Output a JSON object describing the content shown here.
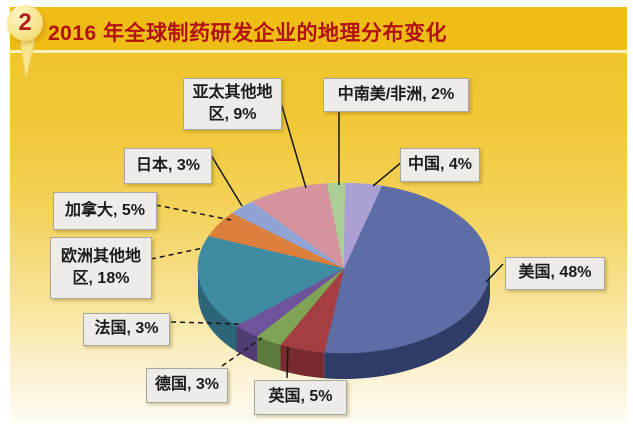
{
  "badge": {
    "number": "2"
  },
  "header": {
    "title": "2016 年全球制药研发企业的地理分布变化"
  },
  "chart_data": {
    "type": "pie",
    "style": "3d",
    "title": "2016 年全球制药研发企业的地理分布变化",
    "unit": "percent",
    "total": 100,
    "direction": "clockwise",
    "start_angle_deg": 15,
    "legend_position": "callout-labels",
    "slices": [
      {
        "id": "usa",
        "label": "美国",
        "value": 48,
        "color": "#5d6da6",
        "side_color": "#303c68"
      },
      {
        "id": "uk",
        "label": "英国",
        "value": 5,
        "color": "#a43e40",
        "side_color": "#772b2f"
      },
      {
        "id": "germany",
        "label": "德国",
        "value": 3,
        "color": "#80a455",
        "side_color": "#5c7b3c"
      },
      {
        "id": "france",
        "label": "法国",
        "value": 3,
        "color": "#6f549b",
        "side_color": "#4f3c73"
      },
      {
        "id": "europe-other",
        "label": "欧洲其他地区",
        "value": 18,
        "color": "#3f8ca2",
        "side_color": "#2c6478"
      },
      {
        "id": "canada",
        "label": "加拿大",
        "value": 5,
        "color": "#dc7e3c",
        "side_color": "#a65a24"
      },
      {
        "id": "japan",
        "label": "日本",
        "value": 3,
        "color": "#90a3d5",
        "side_color": "#67799f"
      },
      {
        "id": "apac-other",
        "label": "亚太其他地区",
        "value": 9,
        "color": "#d6949e",
        "side_color": "#a66d77"
      },
      {
        "id": "latam-africa",
        "label": "中南美/非洲",
        "value": 2,
        "color": "#abcf96",
        "side_color": "#7fa06c"
      },
      {
        "id": "china",
        "label": "中国",
        "value": 4,
        "color": "#ab9fd3",
        "side_color": "#7d72a3"
      }
    ],
    "callouts": [
      {
        "slice": "亚太其他地区",
        "text": "亚太其他地\n区, 9%"
      },
      {
        "slice": "中南美/非洲",
        "text": "中南美/非洲, 2%"
      },
      {
        "slice": "中国",
        "text": "中国, 4%"
      },
      {
        "slice": "日本",
        "text": "日本, 3%"
      },
      {
        "slice": "加拿大",
        "text": "加拿大, 5%"
      },
      {
        "slice": "欧洲其他地区",
        "text": "欧洲其他地\n区, 18%"
      },
      {
        "slice": "法国",
        "text": "法国, 3%"
      },
      {
        "slice": "德国",
        "text": "德国, 3%"
      },
      {
        "slice": "英国",
        "text": "英国, 5%"
      },
      {
        "slice": "美国",
        "text": "美国, 48%"
      }
    ],
    "colors": {
      "background_top": "#f0c326",
      "background_bottom": "#fefcf4",
      "title_color": "#b11111",
      "title_band": "#efbe16",
      "callout_bg": "#edece8",
      "line_color": "#161616"
    }
  }
}
